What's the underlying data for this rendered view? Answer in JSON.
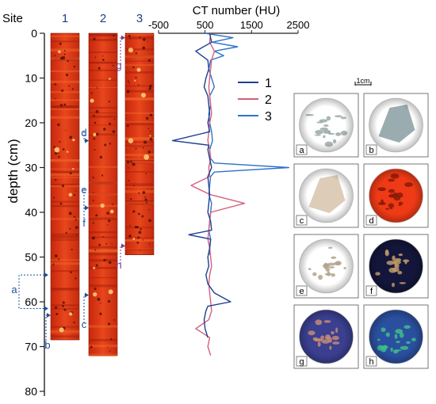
{
  "figure": {
    "depth_axis": {
      "label": "depth (cm)",
      "site_label": "Site",
      "ticks": [
        "0",
        "10",
        "20",
        "30",
        "40",
        "50",
        "60",
        "70",
        "80"
      ],
      "range": [
        0,
        80
      ]
    },
    "cores": [
      {
        "label": "1",
        "length_cm": 68.5
      },
      {
        "label": "2",
        "length_cm": 72
      },
      {
        "label": "3",
        "length_cm": 49.5
      }
    ],
    "markers": [
      {
        "letter": "a",
        "core": "1",
        "depth_from": 54,
        "depth_to": 61.5
      },
      {
        "letter": "b",
        "core": "1",
        "depth_from": 63,
        "depth_to": 69
      },
      {
        "letter": "c",
        "core": "2",
        "depth_from": 58.5,
        "depth_to": 65
      },
      {
        "letter": "d",
        "core": "2",
        "depth_from": 24,
        "depth_to": 27
      },
      {
        "letter": "e",
        "core": "2",
        "depth_from": 39,
        "depth_to": 39
      },
      {
        "letter": "f",
        "core": "2",
        "depth_from": 39,
        "depth_to": 40
      },
      {
        "letter": "g",
        "core": "3",
        "depth_from": 1,
        "depth_to": 6
      },
      {
        "letter": "h",
        "core": "3",
        "depth_from": 47.5,
        "depth_to": 53.5
      }
    ],
    "ct_plot": {
      "title": "CT number (HU)",
      "x_ticks": [
        "-500",
        "500",
        "1500",
        "2500"
      ]
    },
    "scale_bar": "1cm",
    "panels": [
      {
        "letter": "a",
        "bg": "#ffffff",
        "tint": "#9aa8a8"
      },
      {
        "letter": "b",
        "bg": "#ffffff",
        "tint": "#8fa3a6"
      },
      {
        "letter": "c",
        "bg": "#ffffff",
        "tint": "#d8c6b0"
      },
      {
        "letter": "d",
        "bg": "#ee3a16",
        "tint": "#8a1a06"
      },
      {
        "letter": "e",
        "bg": "#ffffff",
        "tint": "#b3a48a"
      },
      {
        "letter": "f",
        "bg": "#13163a",
        "tint": "#c09a6a"
      },
      {
        "letter": "g",
        "bg": "#3a3f8f",
        "tint": "#c48878"
      },
      {
        "letter": "h",
        "bg": "#2b4f9f",
        "tint": "#3dbd8a"
      }
    ]
  },
  "chart_data": {
    "type": "line",
    "title": "CT number (HU)",
    "xlabel": "CT number (HU)",
    "ylabel": "depth (cm)",
    "xlim": [
      -500,
      2500
    ],
    "ylim": [
      0,
      80
    ],
    "legend_position": "right",
    "series": [
      {
        "name": "1",
        "color": "#1f3f8f",
        "depth": [
          0,
          2,
          4,
          6,
          8,
          10,
          12,
          14,
          16,
          18,
          20,
          22,
          24,
          25,
          26,
          28,
          30,
          32,
          34,
          36,
          38,
          40,
          42,
          44,
          45,
          46,
          48,
          50,
          52,
          54,
          56,
          58,
          60,
          61,
          62,
          64,
          66,
          68
        ],
        "ct": [
          600,
          640,
          300,
          560,
          580,
          520,
          480,
          560,
          580,
          600,
          560,
          600,
          -200,
          580,
          560,
          600,
          640,
          560,
          580,
          600,
          580,
          560,
          620,
          640,
          150,
          620,
          600,
          560,
          580,
          520,
          560,
          700,
          1050,
          560,
          520,
          480,
          500,
          560
        ]
      },
      {
        "name": "2",
        "color": "#d4607a",
        "depth": [
          0,
          2,
          4,
          6,
          8,
          10,
          12,
          14,
          16,
          18,
          20,
          22,
          24,
          26,
          28,
          30,
          32,
          34,
          36,
          38,
          40,
          42,
          44,
          46,
          48,
          50,
          52,
          54,
          56,
          58,
          60,
          62,
          64,
          66,
          68,
          70,
          72
        ],
        "ct": [
          620,
          600,
          700,
          640,
          620,
          600,
          580,
          600,
          620,
          640,
          600,
          580,
          560,
          600,
          620,
          580,
          600,
          200,
          600,
          1350,
          620,
          600,
          580,
          560,
          600,
          620,
          640,
          600,
          580,
          600,
          620,
          640,
          580,
          300,
          600,
          560,
          620
        ]
      },
      {
        "name": "3",
        "color": "#2f73c8",
        "depth": [
          0,
          1,
          2,
          3,
          4,
          5,
          6,
          8,
          10,
          12,
          14,
          16,
          18,
          20,
          22,
          24,
          26,
          28,
          29,
          30,
          31,
          32,
          34,
          36,
          38,
          40,
          42,
          44,
          46,
          48,
          49.5
        ],
        "ct": [
          500,
          1100,
          650,
          1200,
          700,
          900,
          620,
          580,
          640,
          700,
          600,
          620,
          580,
          600,
          640,
          660,
          600,
          620,
          700,
          2300,
          700,
          620,
          600,
          580,
          640,
          620,
          600,
          580,
          620,
          600,
          600
        ]
      }
    ]
  }
}
